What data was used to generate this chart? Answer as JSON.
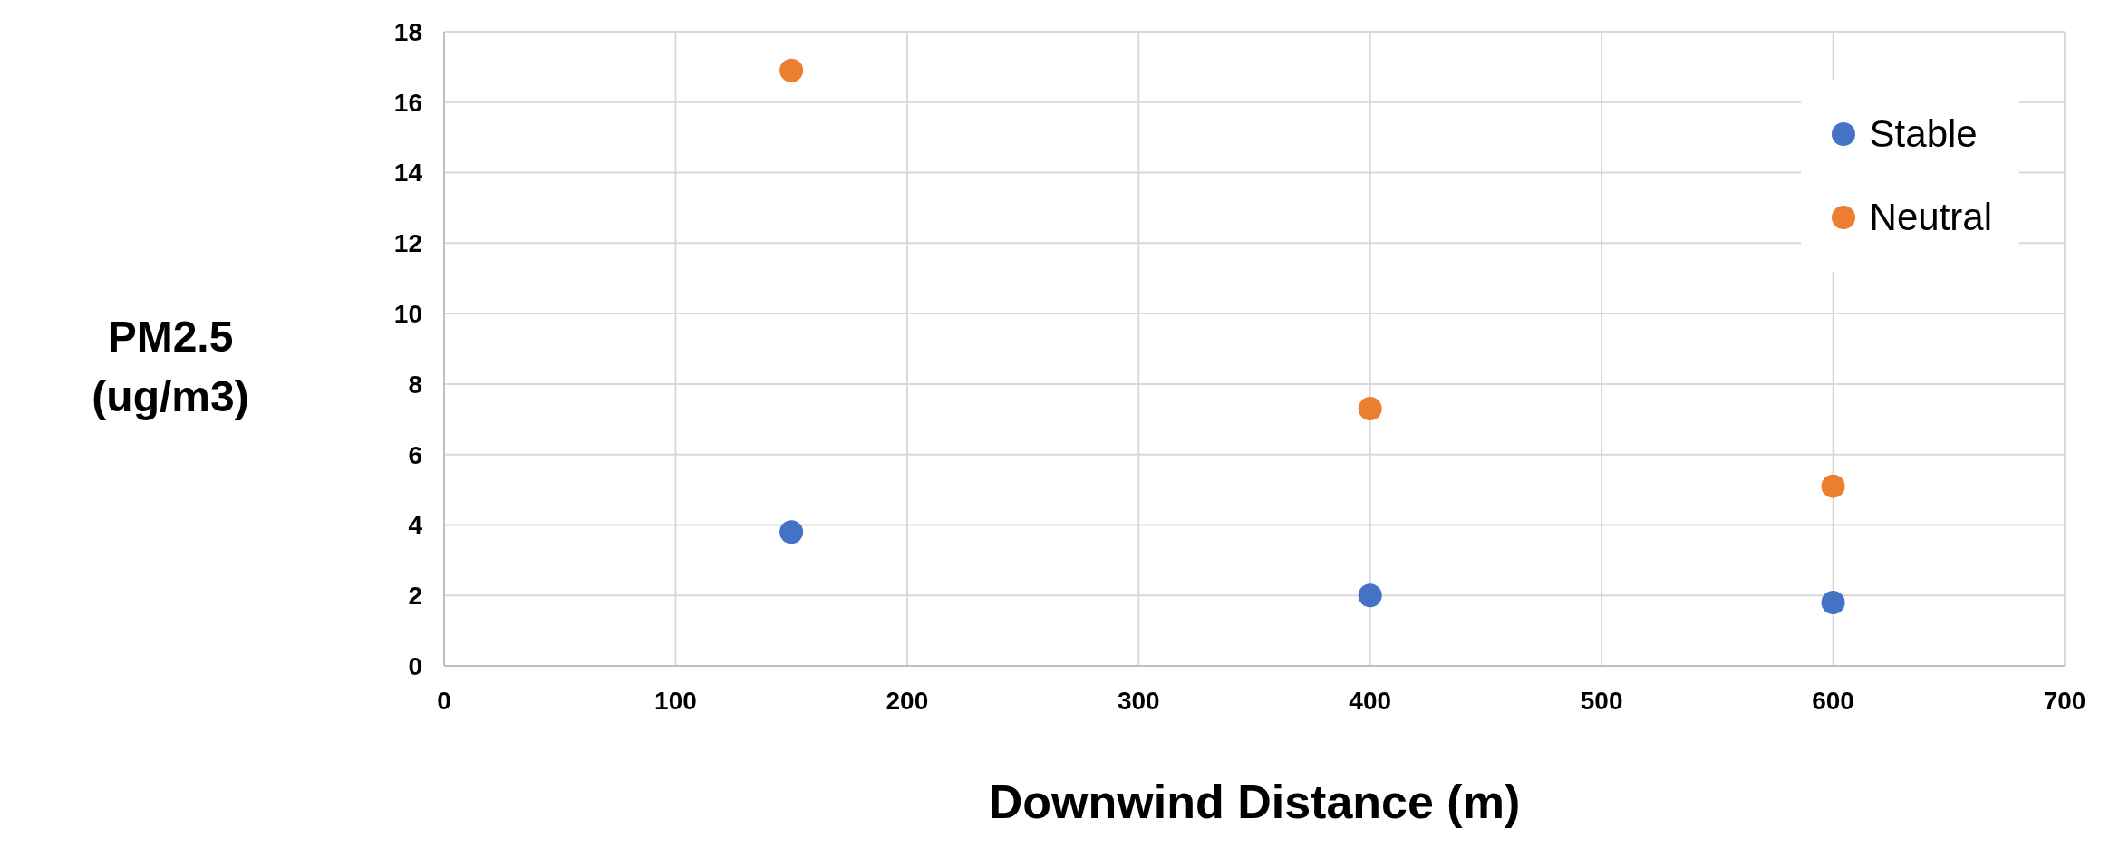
{
  "chart_data": {
    "type": "scatter",
    "xlabel": "Downwind Distance (m)",
    "ylabel": "PM2.5 (ug/m3)",
    "series": [
      {
        "name": "Stable",
        "color": "#4472c4",
        "x": [
          150,
          400,
          600
        ],
        "values": [
          3.8,
          2.0,
          1.8
        ]
      },
      {
        "name": "Neutral",
        "color": "#ed7d31",
        "x": [
          150,
          400,
          600
        ],
        "values": [
          16.9,
          7.3,
          5.1
        ]
      }
    ],
    "xlim": [
      0,
      700
    ],
    "xticks": [
      0,
      100,
      200,
      300,
      400,
      500,
      600,
      700
    ],
    "ylim": [
      0,
      18
    ],
    "yticks": [
      0,
      2,
      4,
      6,
      8,
      10,
      12,
      14,
      16,
      18
    ],
    "grid": true,
    "legend": "top right",
    "marker": "circle"
  }
}
